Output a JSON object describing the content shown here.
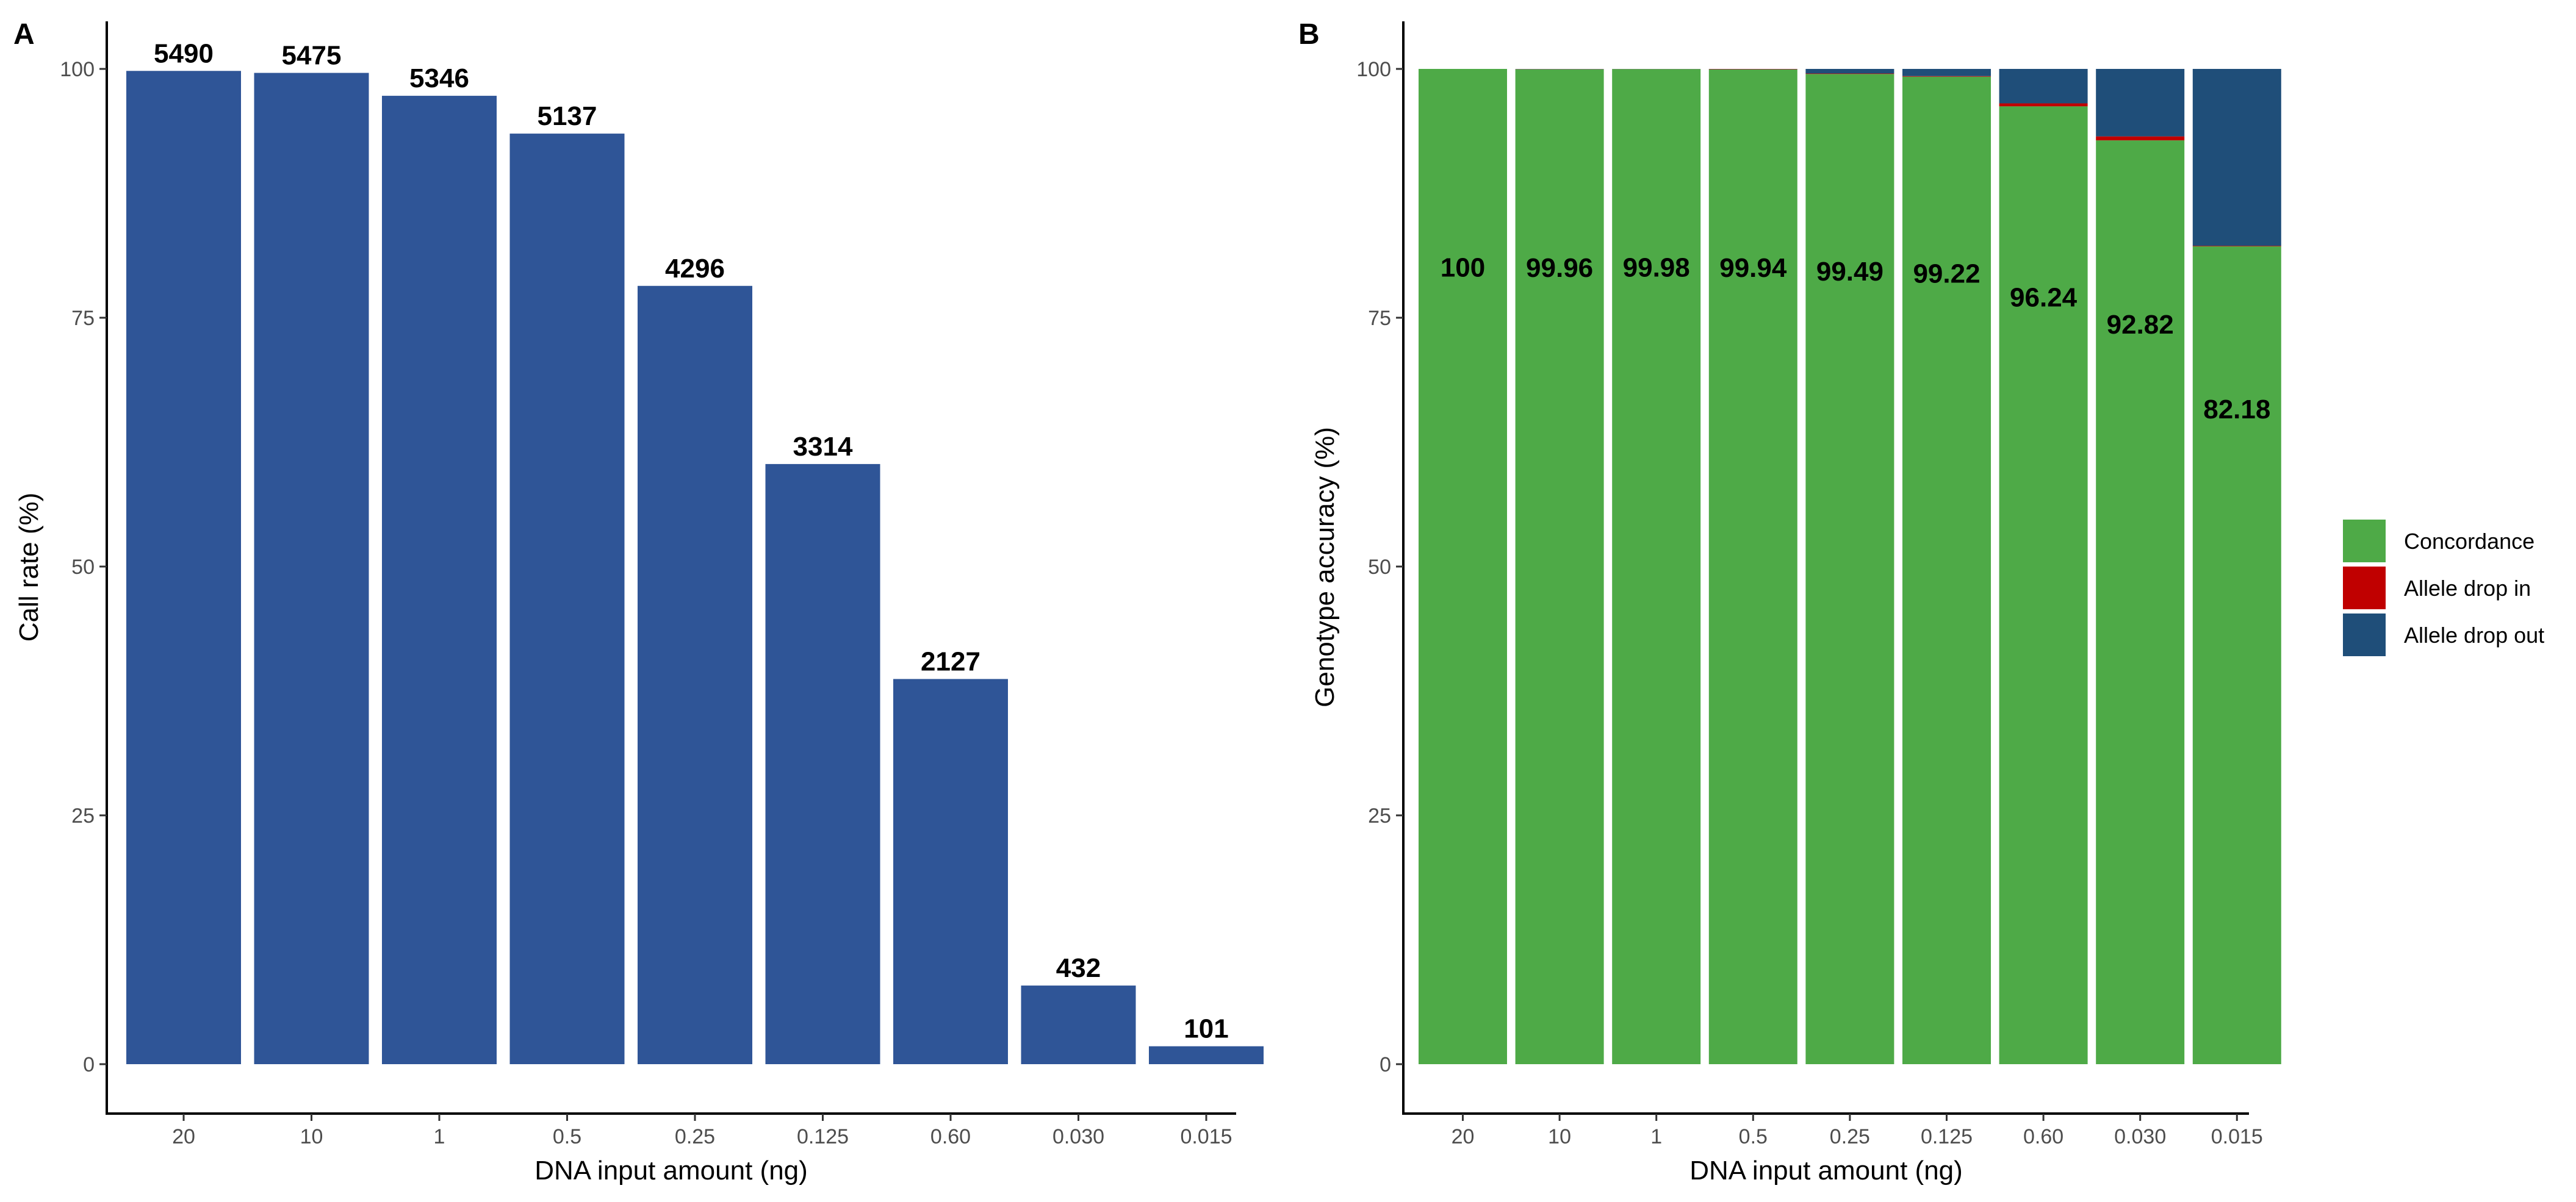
{
  "colors": {
    "panelA_bar": "#2F5597",
    "concordance": "#4EAA47",
    "allele_drop_in": "#C00000",
    "allele_drop_out": "#1F4E79"
  },
  "chart_data": [
    {
      "panel": "A",
      "type": "bar",
      "title": "",
      "xlabel": "DNA input amount (ng)",
      "ylabel": "Call rate (%)",
      "ylim": [
        0,
        100
      ],
      "yticks": [
        0,
        25,
        50,
        75,
        100
      ],
      "categories": [
        "20",
        "10",
        "1",
        "0.5",
        "0.25",
        "0.125",
        "0.60",
        "0.030",
        "0.015"
      ],
      "values": [
        99.8,
        99.6,
        97.3,
        93.5,
        78.2,
        60.3,
        38.7,
        7.9,
        1.8
      ],
      "labels": [
        "5490",
        "5475",
        "5346",
        "5137",
        "4296",
        "3314",
        "2127",
        "432",
        "101"
      ],
      "grid": false
    },
    {
      "panel": "B",
      "type": "stacked-bar",
      "title": "",
      "xlabel": "DNA input amount (ng)",
      "ylabel": "Genotype accuracy (%)",
      "ylim": [
        0,
        100
      ],
      "yticks": [
        0,
        25,
        50,
        75,
        100
      ],
      "categories": [
        "20",
        "10",
        "1",
        "0.5",
        "0.25",
        "0.125",
        "0.60",
        "0.030",
        "0.015"
      ],
      "series": [
        {
          "name": "Concordance",
          "values": [
            100,
            99.96,
            99.98,
            99.94,
            99.49,
            99.22,
            96.24,
            92.82,
            82.18
          ]
        },
        {
          "name": "Allele drop in",
          "values": [
            0,
            0.02,
            0.01,
            0.04,
            0.05,
            0.06,
            0.3,
            0.4,
            0.05
          ]
        },
        {
          "name": "Allele drop out",
          "values": [
            0,
            0.02,
            0.01,
            0.02,
            0.46,
            0.72,
            3.46,
            6.78,
            17.77
          ]
        }
      ],
      "labels": [
        "100",
        "99.96",
        "99.98",
        "99.94",
        "99.49",
        "99.22",
        "96.24",
        "92.82",
        "82.18"
      ],
      "legend": "right",
      "grid": false
    }
  ]
}
